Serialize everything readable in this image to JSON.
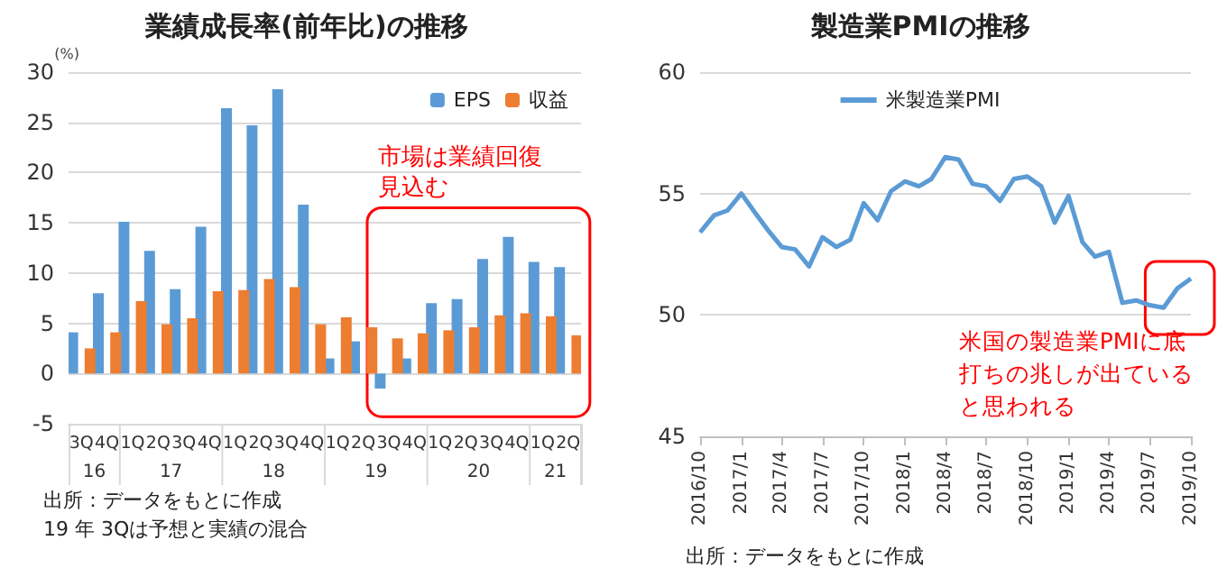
{
  "chart_data": [
    {
      "type": "bar",
      "title": "業績成長率(前年比)の推移",
      "ylabel": "(%)",
      "categories": [
        "3Q",
        "4Q",
        "1Q",
        "2Q",
        "3Q",
        "4Q",
        "1Q",
        "2Q",
        "3Q",
        "4Q",
        "1Q",
        "2Q",
        "3Q",
        "4Q",
        "1Q",
        "2Q",
        "3Q",
        "4Q",
        "1Q",
        "2Q"
      ],
      "series": [
        {
          "name": "EPS",
          "color": "#5b9bd5",
          "values": [
            4.1,
            8.0,
            15.1,
            12.2,
            8.4,
            14.6,
            26.4,
            24.7,
            28.3,
            16.8,
            1.5,
            3.2,
            -1.5,
            1.5,
            7.0,
            7.4,
            11.4,
            13.6,
            11.1,
            10.6
          ]
        },
        {
          "name": "収益",
          "color": "#ed7d31",
          "values": [
            2.5,
            4.1,
            7.2,
            4.9,
            5.5,
            8.2,
            8.3,
            9.4,
            8.6,
            4.9,
            5.6,
            4.6,
            3.5,
            4.0,
            4.3,
            4.6,
            5.8,
            6.0,
            5.7,
            3.8
          ]
        }
      ],
      "ylim": [
        -5,
        30
      ],
      "yticks": [
        -5,
        0,
        5,
        10,
        15,
        20,
        25,
        30
      ],
      "grid": "y",
      "legend": "top right",
      "annotations": [
        "16",
        "17",
        "18",
        "19",
        "20",
        "21",
        "市場は業績回復見込む",
        "出所：データをもとに作成",
        "19 年 3Qは予想と実績の混合"
      ]
    },
    {
      "type": "line",
      "title": "製造業PMIの推移",
      "x": [
        "2016-10",
        "2016-11",
        "2016-12",
        "2017-01",
        "2017-02",
        "2017-03",
        "2017-04",
        "2017-05",
        "2017-06",
        "2017-07",
        "2017-08",
        "2017-09",
        "2017-10",
        "2017-11",
        "2017-12",
        "2018-01",
        "2018-02",
        "2018-03",
        "2018-04",
        "2018-05",
        "2018-06",
        "2018-07",
        "2018-08",
        "2018-09",
        "2018-10",
        "2018-11",
        "2018-12",
        "2019-01",
        "2019-02",
        "2019-03",
        "2019-04",
        "2019-05",
        "2019-06",
        "2019-07",
        "2019-08",
        "2019-09",
        "2019-10"
      ],
      "series": [
        {
          "name": "米製造業PMI",
          "color": "#5b9bd5",
          "values": [
            53.4,
            54.1,
            54.3,
            55.0,
            54.2,
            53.5,
            52.8,
            52.7,
            52.0,
            53.2,
            52.8,
            53.1,
            54.6,
            53.9,
            55.1,
            55.5,
            55.3,
            55.6,
            56.5,
            56.4,
            55.4,
            55.3,
            54.7,
            55.6,
            55.7,
            55.3,
            53.8,
            54.9,
            53.0,
            52.4,
            52.6,
            50.5,
            50.6,
            50.4,
            50.3,
            51.1,
            51.5
          ]
        }
      ],
      "xlim": [
        "2016-10",
        "2019-10"
      ],
      "xticks": [
        {
          "value": "2016-10",
          "label": "2016/10"
        },
        {
          "value": "2017-01",
          "label": "2017/1"
        },
        {
          "value": "2017-04",
          "label": "2017/4"
        },
        {
          "value": "2017-07",
          "label": "2017/7"
        },
        {
          "value": "2017-10",
          "label": "2017/10"
        },
        {
          "value": "2018-01",
          "label": "2018/1"
        },
        {
          "value": "2018-04",
          "label": "2018/4"
        },
        {
          "value": "2018-07",
          "label": "2018/7"
        },
        {
          "value": "2018-10",
          "label": "2018/10"
        },
        {
          "value": "2019-01",
          "label": "2019/1"
        },
        {
          "value": "2019-04",
          "label": "2019/4"
        },
        {
          "value": "2019-07",
          "label": "2019/7"
        },
        {
          "value": "2019-10",
          "label": "2019/10"
        }
      ],
      "ylim": [
        45,
        60
      ],
      "yticks": [
        45,
        50,
        55,
        60
      ],
      "grid": "y",
      "legend": "top",
      "marker": "none",
      "line_style": "solid",
      "annotations": [
        "米国の製造業PMIに底打ちの兆しが出ていると思われる",
        "出所：データをもとに作成"
      ]
    }
  ]
}
